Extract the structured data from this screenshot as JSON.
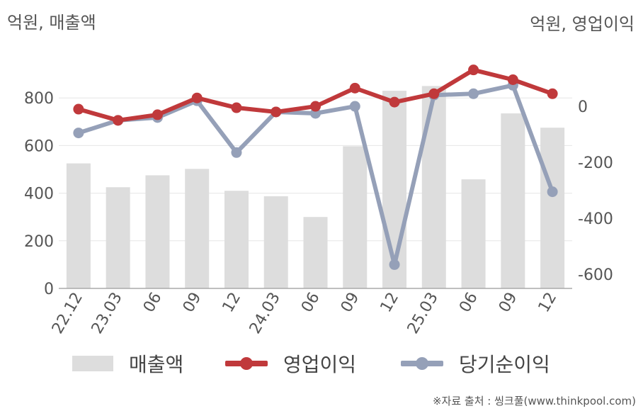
{
  "units": {
    "left": "억원, 매출액",
    "right": "억원, 영업이익"
  },
  "legend": {
    "revenue": "매출액",
    "operating": "영업이익",
    "net": "당기순이익"
  },
  "source": "※자료 출처 : 씽크풀(www.thinkpool.com)",
  "colors": {
    "revenue": "#dddddd",
    "operating": "#c0393b",
    "net": "#95a0b8",
    "grid": "#e6e6e6",
    "axis": "#aaaaaa"
  },
  "chart_data": {
    "type": "bar",
    "categories": [
      "22.12",
      "23.03",
      "06",
      "09",
      "12",
      "24.03",
      "06",
      "09",
      "12",
      "25.03",
      "06",
      "09",
      "12"
    ],
    "series": [
      {
        "name": "매출액",
        "type": "bar",
        "axis": "left",
        "values": [
          525,
          425,
          475,
          502,
          410,
          387,
          300,
          597,
          830,
          850,
          458,
          735,
          675
        ]
      },
      {
        "name": "영업이익",
        "type": "line",
        "axis": "right",
        "values": [
          -10,
          -50,
          -30,
          30,
          -5,
          -20,
          0,
          65,
          15,
          45,
          130,
          95,
          45
        ]
      },
      {
        "name": "당기순이익",
        "type": "line",
        "axis": "right",
        "values": [
          -95,
          -50,
          -40,
          20,
          -165,
          -20,
          -25,
          0,
          -565,
          40,
          45,
          75,
          -305
        ]
      }
    ],
    "left_axis": {
      "ylim": [
        0,
        1000
      ],
      "ticks": [
        0,
        200,
        400,
        600,
        800
      ]
    },
    "right_axis": {
      "ylim": [
        -650,
        200
      ],
      "ticks": [
        0,
        -200,
        -400,
        -600
      ]
    },
    "ytick_labels_left": [
      "0",
      "200",
      "400",
      "600",
      "800"
    ],
    "ytick_labels_right": [
      "0",
      "-200",
      "-400",
      "-600"
    ],
    "grid": true,
    "legend_position": "bottom"
  }
}
